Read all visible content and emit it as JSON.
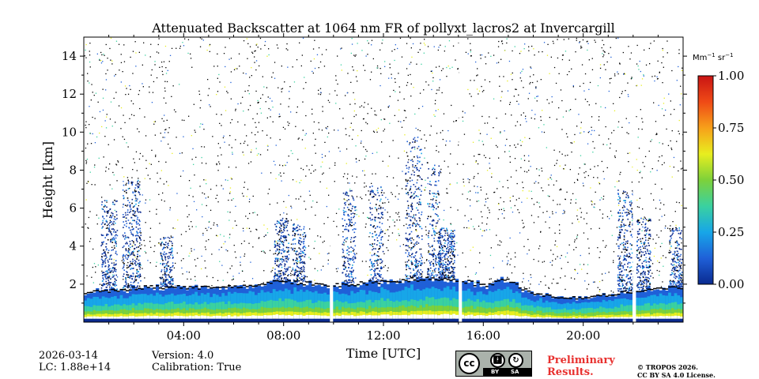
{
  "chart_data": {
    "type": "heatmap",
    "title": "Attenuated Backscatter at 1064 nm FR of pollyxt_lacros2 at Invercargill",
    "xlabel": "Time [UTC]",
    "ylabel": "Height [km]",
    "x_range_hours": [
      0,
      24
    ],
    "y_range_km": [
      0,
      15
    ],
    "x_ticks": [
      "04:00",
      "08:00",
      "12:00",
      "16:00",
      "20:00"
    ],
    "x_tick_hours": [
      4,
      8,
      12,
      16,
      20
    ],
    "y_ticks": [
      "2",
      "4",
      "6",
      "8",
      "10",
      "12",
      "14"
    ],
    "y_tick_values": [
      2,
      4,
      6,
      8,
      10,
      12,
      14
    ],
    "colorbar": {
      "unit_base": "Mm",
      "unit_sup1": "−1",
      "unit_mid": " sr",
      "unit_sup2": "−1",
      "range": [
        0.0,
        1.0
      ],
      "ticks": [
        "0.00",
        "0.25",
        "0.50",
        "0.75",
        "1.00"
      ],
      "tick_values": [
        0.0,
        0.25,
        0.5,
        0.75,
        1.0
      ],
      "colors": [
        "#0a2a8f",
        "#1f60d8",
        "#17a6e8",
        "#3ad1a0",
        "#7dd13a",
        "#e8ee1f",
        "#f7a01a",
        "#ef4a16",
        "#c91414"
      ]
    },
    "data_gaps_hours": [
      9.92,
      15.08,
      22.05
    ],
    "boundary_layer_top_km": [
      {
        "t": 0.0,
        "h": 1.6
      },
      {
        "t": 1.0,
        "h": 1.7
      },
      {
        "t": 2.5,
        "h": 1.9
      },
      {
        "t": 4.0,
        "h": 1.9
      },
      {
        "t": 6.0,
        "h": 1.9
      },
      {
        "t": 8.0,
        "h": 2.2
      },
      {
        "t": 10.0,
        "h": 2.0
      },
      {
        "t": 12.0,
        "h": 2.2
      },
      {
        "t": 14.0,
        "h": 2.4
      },
      {
        "t": 15.0,
        "h": 2.3
      },
      {
        "t": 16.0,
        "h": 2.0
      },
      {
        "t": 17.0,
        "h": 2.3
      },
      {
        "t": 18.0,
        "h": 1.5
      },
      {
        "t": 20.0,
        "h": 1.3
      },
      {
        "t": 22.0,
        "h": 1.7
      },
      {
        "t": 24.0,
        "h": 1.9
      }
    ],
    "cloud_columns": [
      {
        "t": 1.0,
        "top_km": 6.5,
        "intensity": 0.2
      },
      {
        "t": 1.9,
        "top_km": 7.5,
        "intensity": 0.25
      },
      {
        "t": 3.3,
        "top_km": 4.5,
        "intensity": 0.1
      },
      {
        "t": 7.9,
        "top_km": 5.5,
        "intensity": 0.15
      },
      {
        "t": 8.6,
        "top_km": 5.2,
        "intensity": 0.12
      },
      {
        "t": 10.6,
        "top_km": 7.0,
        "intensity": 0.12
      },
      {
        "t": 11.7,
        "top_km": 7.2,
        "intensity": 0.12
      },
      {
        "t": 13.2,
        "top_km": 9.8,
        "intensity": 0.22
      },
      {
        "t": 14.0,
        "top_km": 8.5,
        "intensity": 0.12
      },
      {
        "t": 14.5,
        "top_km": 5.0,
        "intensity": 0.2
      },
      {
        "t": 21.7,
        "top_km": 7.0,
        "intensity": 0.22
      },
      {
        "t": 22.4,
        "top_km": 5.5,
        "intensity": 0.15
      },
      {
        "t": 23.7,
        "top_km": 5.0,
        "intensity": 0.12
      }
    ]
  },
  "footer": {
    "date": "2026-03-14",
    "lc": "LC: 1.88e+14",
    "version": "Version: 4.0",
    "calibration": "Calibration: True",
    "preliminary_line1": "Preliminary",
    "preliminary_line2": "Results.",
    "copyright_line1": "© TROPOS 2026.",
    "copyright_line2": "CC BY SA 4.0 License.",
    "license_badge_cc": "cc",
    "license_badge_by": "BY",
    "license_badge_sa": "SA"
  }
}
